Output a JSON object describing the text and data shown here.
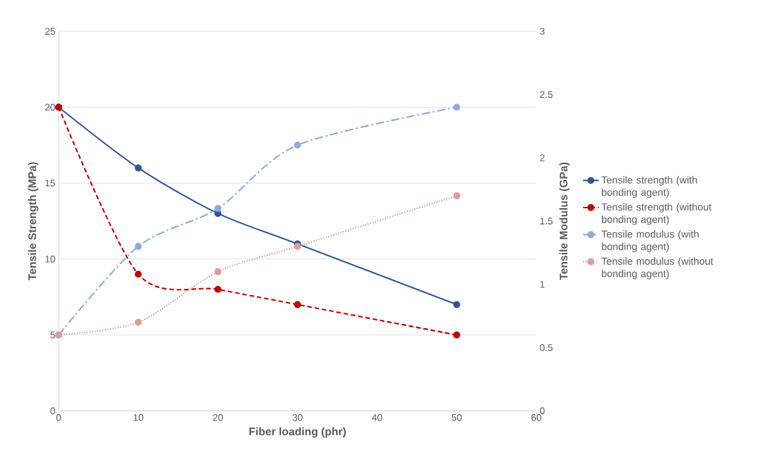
{
  "chart_data": {
    "type": "line",
    "xlabel": "Fiber loading (phr)",
    "ylabel": "Tensile Strength (MPa)",
    "y2label": "Tensile Modulus (GPa)",
    "x": [
      0,
      10,
      20,
      30,
      50
    ],
    "series": [
      {
        "name": "Tensile strength (with bonding agent)",
        "color": "#2f5597",
        "line_style": "solid",
        "values": [
          20,
          16,
          13,
          11,
          7
        ]
      },
      {
        "name": "Tensile strength (without bonding agent)",
        "color": "#c00000",
        "line_style": "dashed",
        "values": [
          20,
          9,
          8,
          7,
          5
        ]
      },
      {
        "name": "Tensile modulus (with bonding agent)",
        "color": "#8faadc",
        "line_style": "dashdot",
        "axis": "y2",
        "values": [
          0.6,
          1.3,
          1.6,
          2.1,
          2.4
        ]
      },
      {
        "name": "Tensile modulus (without bonding agent)",
        "color": "#e09a9a",
        "line_style": "dotted",
        "axis": "y2",
        "values": [
          0.6,
          0.7,
          1.1,
          1.3,
          1.7
        ]
      }
    ],
    "xlim": [
      0,
      60
    ],
    "xticks": [
      0,
      10,
      20,
      30,
      40,
      50,
      60
    ],
    "ylim": [
      0,
      25
    ],
    "yticks": [
      0,
      5,
      10,
      15,
      20,
      25
    ],
    "y2lim": [
      0,
      3
    ],
    "y2ticks": [
      0,
      0.5,
      1,
      1.5,
      2,
      2.5,
      3
    ],
    "grid": "y",
    "legend": "right",
    "marker": "circle"
  }
}
